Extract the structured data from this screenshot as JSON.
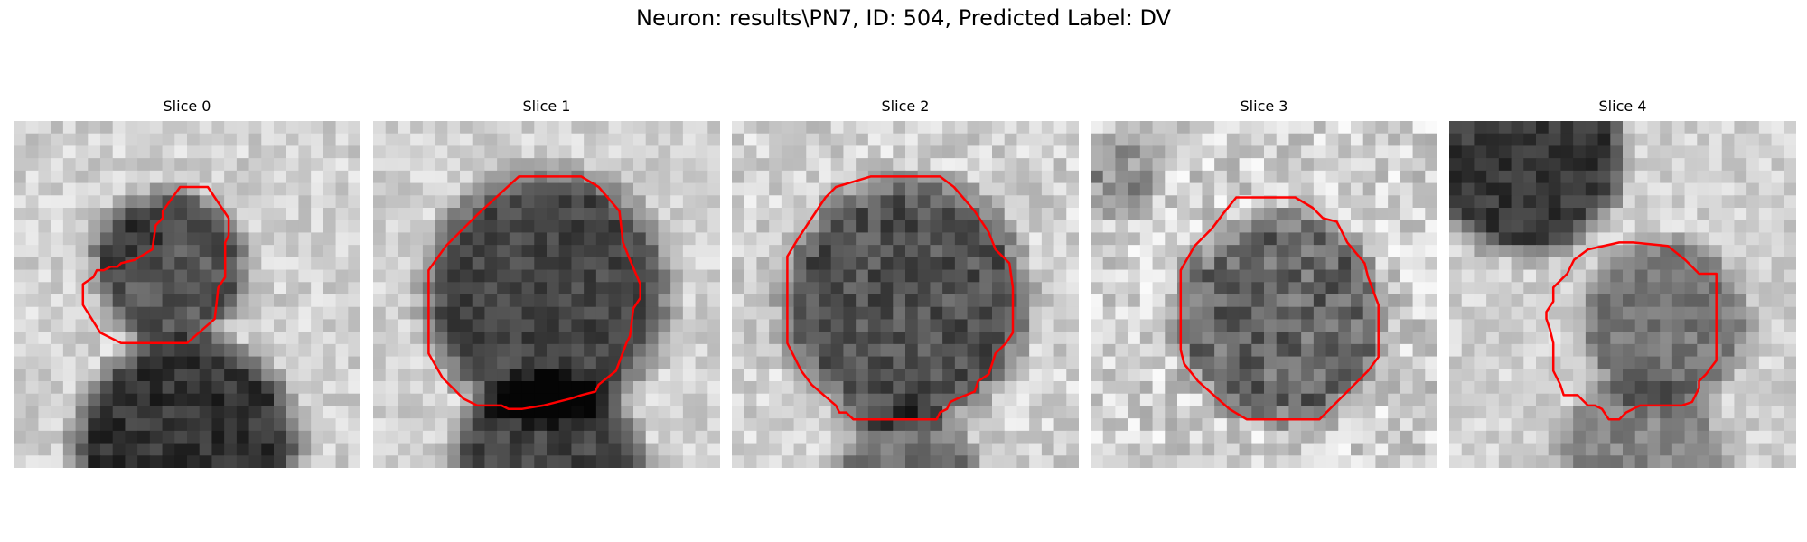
{
  "figure": {
    "suptitle": "Neuron: results\\PN7, ID: 504, Predicted Label: DV",
    "contour_color": "#ff0000",
    "colormap": "grayscale",
    "panels": [
      {
        "title": "Slice 0",
        "content": "grayscale 2D microscopy patch with dark rounded cell body; red outline traced around the cell",
        "contour": [
          [
            0.48,
            0.19
          ],
          [
            0.56,
            0.19
          ],
          [
            0.62,
            0.28
          ],
          [
            0.62,
            0.33
          ],
          [
            0.61,
            0.35
          ],
          [
            0.61,
            0.45
          ],
          [
            0.59,
            0.48
          ],
          [
            0.58,
            0.57
          ],
          [
            0.5,
            0.64
          ],
          [
            0.31,
            0.64
          ],
          [
            0.25,
            0.61
          ],
          [
            0.2,
            0.53
          ],
          [
            0.2,
            0.47
          ],
          [
            0.23,
            0.45
          ],
          [
            0.24,
            0.43
          ],
          [
            0.26,
            0.43
          ],
          [
            0.28,
            0.42
          ],
          [
            0.3,
            0.42
          ],
          [
            0.31,
            0.41
          ],
          [
            0.35,
            0.4
          ],
          [
            0.4,
            0.37
          ],
          [
            0.41,
            0.3
          ],
          [
            0.43,
            0.28
          ],
          [
            0.43,
            0.26
          ]
        ]
      },
      {
        "title": "Slice 1",
        "content": "grayscale 2D microscopy patch with large dark cell body; red outline traced around the cell",
        "contour": [
          [
            0.42,
            0.16
          ],
          [
            0.6,
            0.16
          ],
          [
            0.65,
            0.19
          ],
          [
            0.71,
            0.26
          ],
          [
            0.72,
            0.35
          ],
          [
            0.74,
            0.4
          ],
          [
            0.77,
            0.47
          ],
          [
            0.77,
            0.51
          ],
          [
            0.75,
            0.54
          ],
          [
            0.74,
            0.62
          ],
          [
            0.73,
            0.64
          ],
          [
            0.7,
            0.72
          ],
          [
            0.65,
            0.76
          ],
          [
            0.64,
            0.78
          ],
          [
            0.6,
            0.79
          ],
          [
            0.57,
            0.8
          ],
          [
            0.49,
            0.82
          ],
          [
            0.43,
            0.83
          ],
          [
            0.39,
            0.83
          ],
          [
            0.37,
            0.82
          ],
          [
            0.3,
            0.82
          ],
          [
            0.26,
            0.8
          ],
          [
            0.2,
            0.74
          ],
          [
            0.16,
            0.67
          ],
          [
            0.16,
            0.64
          ],
          [
            0.16,
            0.54
          ],
          [
            0.16,
            0.44
          ],
          [
            0.16,
            0.43
          ],
          [
            0.21,
            0.36
          ],
          [
            0.3,
            0.27
          ]
        ]
      },
      {
        "title": "Slice 2",
        "content": "grayscale 2D microscopy patch with large dark cell body; red outline traced around the cell",
        "contour": [
          [
            0.3,
            0.19
          ],
          [
            0.4,
            0.16
          ],
          [
            0.6,
            0.16
          ],
          [
            0.64,
            0.19
          ],
          [
            0.7,
            0.26
          ],
          [
            0.74,
            0.32
          ],
          [
            0.76,
            0.37
          ],
          [
            0.8,
            0.41
          ],
          [
            0.81,
            0.48
          ],
          [
            0.81,
            0.61
          ],
          [
            0.79,
            0.64
          ],
          [
            0.76,
            0.67
          ],
          [
            0.74,
            0.73
          ],
          [
            0.71,
            0.75
          ],
          [
            0.7,
            0.78
          ],
          [
            0.65,
            0.8
          ],
          [
            0.63,
            0.81
          ],
          [
            0.62,
            0.83
          ],
          [
            0.6,
            0.84
          ],
          [
            0.59,
            0.86
          ],
          [
            0.35,
            0.86
          ],
          [
            0.33,
            0.84
          ],
          [
            0.31,
            0.84
          ],
          [
            0.3,
            0.82
          ],
          [
            0.23,
            0.76
          ],
          [
            0.2,
            0.72
          ],
          [
            0.18,
            0.68
          ],
          [
            0.16,
            0.64
          ],
          [
            0.16,
            0.53
          ],
          [
            0.16,
            0.39
          ],
          [
            0.19,
            0.34
          ],
          [
            0.23,
            0.28
          ],
          [
            0.27,
            0.22
          ]
        ]
      },
      {
        "title": "Slice 3",
        "content": "grayscale 2D microscopy patch with dark cell body; red outline traced around the cell",
        "contour": [
          [
            0.42,
            0.22
          ],
          [
            0.59,
            0.22
          ],
          [
            0.64,
            0.25
          ],
          [
            0.67,
            0.28
          ],
          [
            0.71,
            0.29
          ],
          [
            0.74,
            0.35
          ],
          [
            0.79,
            0.41
          ],
          [
            0.8,
            0.45
          ],
          [
            0.83,
            0.53
          ],
          [
            0.83,
            0.68
          ],
          [
            0.8,
            0.72
          ],
          [
            0.74,
            0.78
          ],
          [
            0.7,
            0.82
          ],
          [
            0.66,
            0.86
          ],
          [
            0.59,
            0.86
          ],
          [
            0.45,
            0.86
          ],
          [
            0.4,
            0.83
          ],
          [
            0.31,
            0.75
          ],
          [
            0.27,
            0.7
          ],
          [
            0.26,
            0.66
          ],
          [
            0.26,
            0.53
          ],
          [
            0.26,
            0.43
          ],
          [
            0.3,
            0.36
          ],
          [
            0.35,
            0.31
          ],
          [
            0.38,
            0.27
          ]
        ]
      },
      {
        "title": "Slice 4",
        "content": "grayscale 2D microscopy patch with rounded cell body near the centre; red outline traced around the cell",
        "contour": [
          [
            0.49,
            0.35
          ],
          [
            0.53,
            0.35
          ],
          [
            0.63,
            0.36
          ],
          [
            0.68,
            0.4
          ],
          [
            0.72,
            0.44
          ],
          [
            0.77,
            0.44
          ],
          [
            0.77,
            0.69
          ],
          [
            0.74,
            0.73
          ],
          [
            0.72,
            0.75
          ],
          [
            0.72,
            0.77
          ],
          [
            0.7,
            0.81
          ],
          [
            0.67,
            0.82
          ],
          [
            0.63,
            0.82
          ],
          [
            0.55,
            0.82
          ],
          [
            0.53,
            0.83
          ],
          [
            0.51,
            0.84
          ],
          [
            0.49,
            0.86
          ],
          [
            0.46,
            0.86
          ],
          [
            0.44,
            0.83
          ],
          [
            0.42,
            0.82
          ],
          [
            0.4,
            0.82
          ],
          [
            0.38,
            0.8
          ],
          [
            0.37,
            0.79
          ],
          [
            0.33,
            0.79
          ],
          [
            0.32,
            0.76
          ],
          [
            0.3,
            0.72
          ],
          [
            0.3,
            0.7
          ],
          [
            0.3,
            0.64
          ],
          [
            0.29,
            0.6
          ],
          [
            0.28,
            0.57
          ],
          [
            0.28,
            0.55
          ],
          [
            0.3,
            0.52
          ],
          [
            0.3,
            0.48
          ],
          [
            0.34,
            0.44
          ],
          [
            0.36,
            0.4
          ],
          [
            0.4,
            0.37
          ]
        ]
      }
    ]
  }
}
